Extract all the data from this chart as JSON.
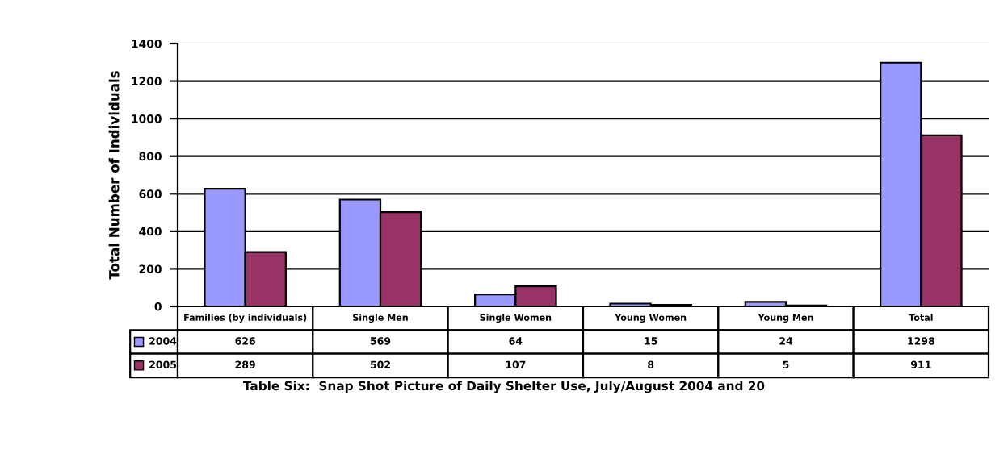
{
  "chart_data": {
    "type": "bar",
    "ylabel": "Total Number of Individuals",
    "categories": [
      "Families (by individuals)",
      "Single Men",
      "Single Women",
      "Young Women",
      "Young Men",
      "Total"
    ],
    "series": [
      {
        "name": "2004",
        "color": "#9999ff",
        "values": [
          626,
          569,
          64,
          15,
          24,
          1298
        ]
      },
      {
        "name": "2005",
        "color": "#993366",
        "values": [
          289,
          502,
          107,
          8,
          5,
          911
        ]
      }
    ],
    "ylim": [
      0,
      1400
    ],
    "yticks": [
      0,
      200,
      400,
      600,
      800,
      1000,
      1200,
      1400
    ],
    "grid": "y",
    "data_labels": true,
    "legend": "bottom left",
    "annotations": [
      "Table Six:  Snap Shot Picture of Daily Shelter Use, July/August 2004 and 20"
    ]
  }
}
